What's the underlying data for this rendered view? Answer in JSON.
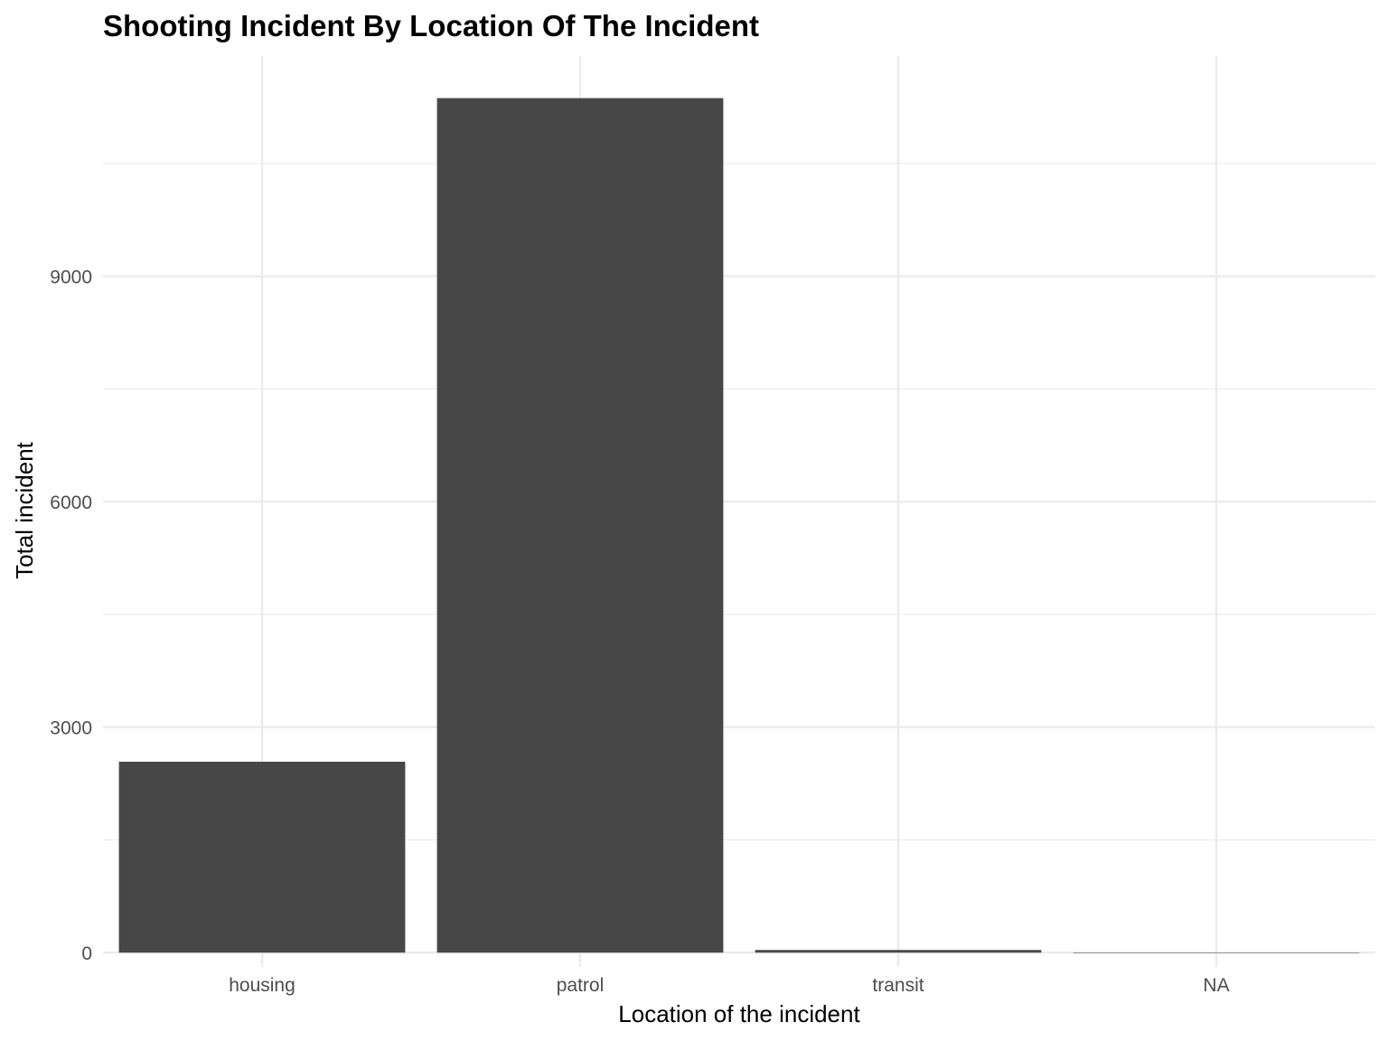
{
  "chart_data": {
    "type": "bar",
    "title": "Shooting Incident By Location Of The Incident",
    "xlabel": "Location of the incident",
    "ylabel": "Total incident",
    "categories": [
      "housing",
      "patrol",
      "transit",
      "NA"
    ],
    "values": [
      2540,
      11370,
      35,
      2
    ],
    "ylim": [
      -190,
      11930
    ],
    "yticks": [
      0,
      3000,
      6000,
      9000
    ],
    "ytick_labels": [
      "0",
      "3000",
      "6000",
      "9000"
    ],
    "grid": true,
    "bar_color": "#474747",
    "grid_color": "#ebebeb"
  }
}
